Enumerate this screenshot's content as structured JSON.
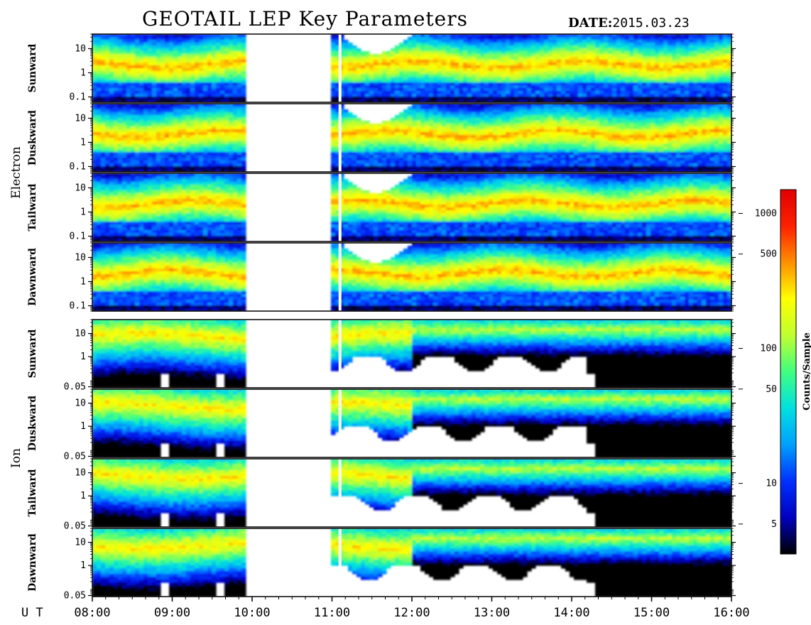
{
  "header": {
    "title": "GEOTAIL LEP Key Parameters",
    "date_label": "DATE:",
    "date_value": "2015.03.23"
  },
  "groups": [
    {
      "name": "Electron",
      "panels": [
        "Sunward",
        "Duskward",
        "Tailward",
        "Dawnward"
      ]
    },
    {
      "name": "Ion",
      "panels": [
        "Sunward",
        "Duskward",
        "Tailward",
        "Dawnward"
      ]
    }
  ],
  "colorbar": {
    "label": "Counts/Sample",
    "ticks": [
      "1000",
      "500",
      "100",
      "50",
      "10",
      "5"
    ],
    "tick_values": [
      1000,
      500,
      100,
      50,
      10,
      5
    ],
    "colors": [
      "#000000",
      "#0000c0",
      "#0030ff",
      "#00a0ff",
      "#00e0e0",
      "#40ff80",
      "#c0ff30",
      "#ffff00",
      "#ff9000",
      "#ff2000",
      "#e00000"
    ]
  },
  "time_axis": {
    "prefix": "U T",
    "ticks": [
      "08:00",
      "09:00",
      "10:00",
      "11:00",
      "12:00",
      "13:00",
      "14:00",
      "15:00",
      "16:00"
    ]
  },
  "chart_data": {
    "type": "heatmap",
    "title": "GEOTAIL LEP Key Parameters",
    "x_unit": "UT hours",
    "xlim": [
      8,
      16
    ],
    "zlabel": "Counts/Sample",
    "zscale": "log",
    "zlim": [
      3,
      1500
    ],
    "electron_yticks": [
      "10",
      "1",
      "0.1"
    ],
    "electron_ytick_values": [
      10,
      1,
      0.1
    ],
    "electron_ylim": [
      0.06,
      40
    ],
    "ion_yticks": [
      "10",
      "1",
      "0.05"
    ],
    "ion_ytick_values": [
      10,
      1,
      0.05
    ],
    "ion_ylim": [
      0.045,
      40
    ],
    "yscale": "log",
    "data_gaps": [
      [
        9.9,
        11.0
      ]
    ],
    "vertical_gap_lines": [
      11.1
    ],
    "panels": [
      "Electron Sunward",
      "Electron Duskward",
      "Electron Tailward",
      "Electron Dawnward",
      "Ion Sunward",
      "Ion Duskward",
      "Ion Tailward",
      "Ion Dawnward"
    ]
  }
}
